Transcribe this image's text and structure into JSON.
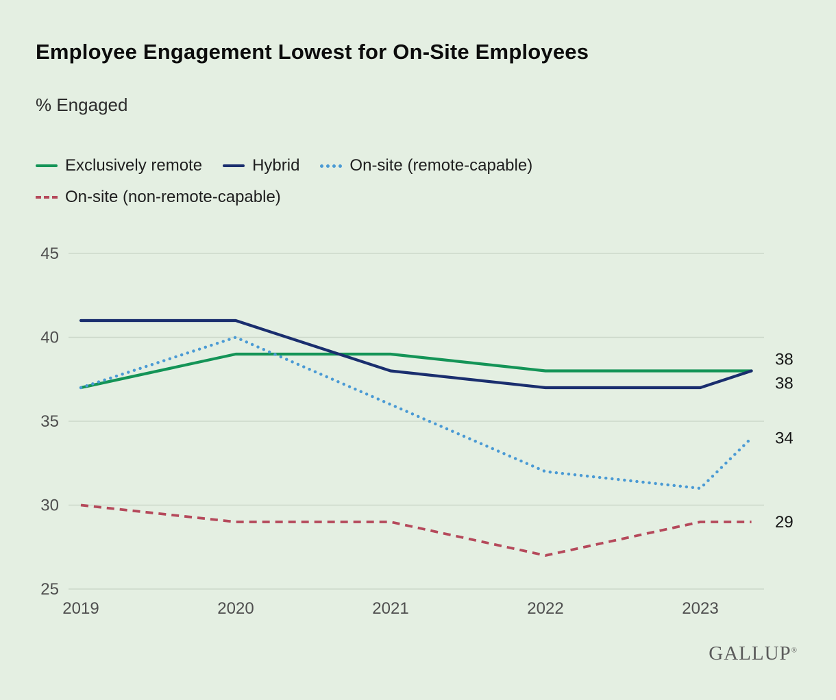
{
  "page": {
    "background": "#e4efe2",
    "title": "Employee Engagement Lowest for On-Site Employees",
    "subtitle": "% Engaged",
    "brand": "GALLUP",
    "brand_reg": "®"
  },
  "chart_data": {
    "type": "line",
    "title": "Employee Engagement Lowest for On-Site Employees",
    "ylabel": "% Engaged",
    "x_labels": [
      "2019",
      "2020",
      "2021",
      "2022",
      "2023"
    ],
    "x_positions": [
      2019,
      2020,
      2021,
      2022,
      2023,
      2023.33
    ],
    "y_ticks": [
      45,
      40,
      35,
      30,
      25
    ],
    "ylim": [
      25,
      45
    ],
    "grid": true,
    "legend_position": "top",
    "grid_color": "#ccd8ca",
    "tick_color": "#4f4f4f",
    "end_label_color": "#161616",
    "series": [
      {
        "name": "Exclusively remote",
        "color": "#149457",
        "style": "solid",
        "values": [
          37,
          39,
          39,
          38,
          38,
          38
        ],
        "end_label": "38",
        "end_label_dy": -17
      },
      {
        "name": "Hybrid",
        "color": "#1a2e6e",
        "style": "solid",
        "values": [
          41,
          41,
          38,
          37,
          37,
          38
        ],
        "end_label": "38",
        "end_label_dy": 18
      },
      {
        "name": "On-site (remote-capable)",
        "color": "#4a9ad4",
        "style": "dotted",
        "values": [
          37,
          40,
          36,
          32,
          31,
          34
        ],
        "end_label": "34",
        "end_label_dy": 0
      },
      {
        "name": "On-site (non-remote-capable)",
        "color": "#b5495b",
        "style": "dashed",
        "values": [
          30,
          29,
          29,
          27,
          29,
          29
        ],
        "end_label": "29",
        "end_label_dy": 0
      }
    ]
  }
}
